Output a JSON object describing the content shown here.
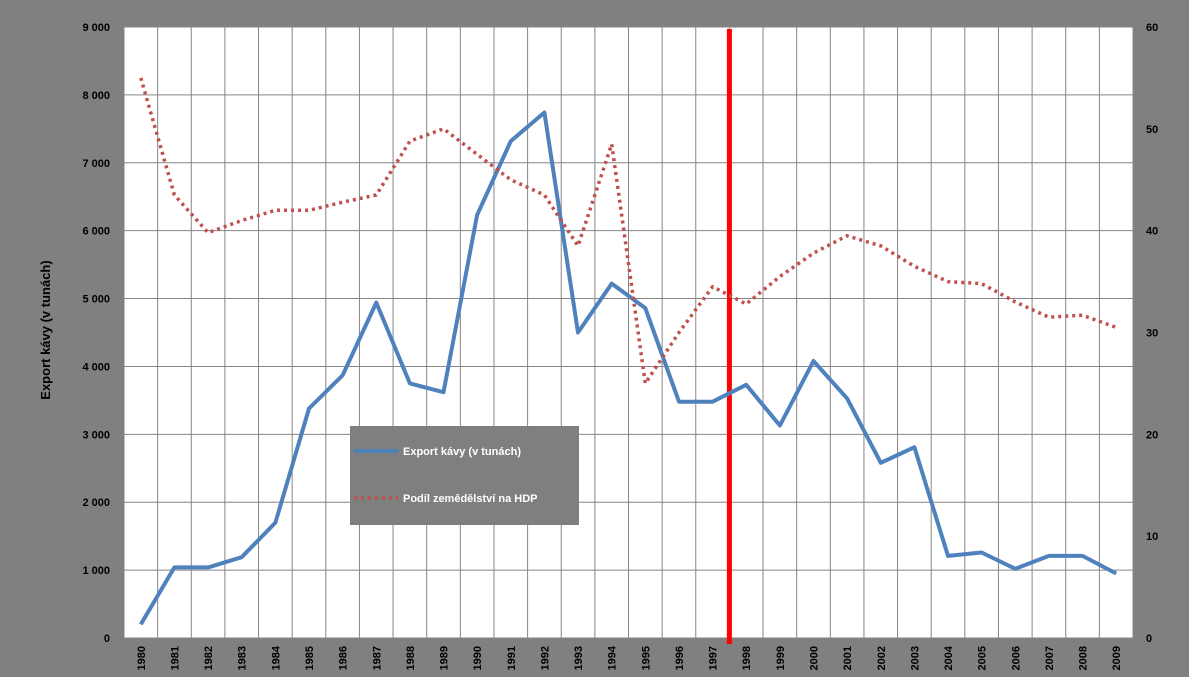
{
  "chart_data": {
    "type": "line",
    "title": "",
    "x": [
      1980,
      1981,
      1982,
      1983,
      1984,
      1985,
      1986,
      1987,
      1988,
      1989,
      1990,
      1991,
      1992,
      1993,
      1994,
      1995,
      1996,
      1997,
      1998,
      1999,
      2000,
      2001,
      2002,
      2003,
      2004,
      2005,
      2006,
      2007,
      2008,
      2009
    ],
    "x_ticks": [
      "1980",
      "1981",
      "1982",
      "1983",
      "1984",
      "1985",
      "1986",
      "1987",
      "1988",
      "1989",
      "1990",
      "1991",
      "1992",
      "1993",
      "1994",
      "1995",
      "1996",
      "1997",
      "1998",
      "1999",
      "2000",
      "2001",
      "2002",
      "2003",
      "2004",
      "2005",
      "2006",
      "2007",
      "2008",
      "2009"
    ],
    "xlabel": "",
    "ylabel": "Export kávy (v tunách)",
    "ylim": [
      0,
      9000
    ],
    "y_ticks": [
      "0",
      "1 000",
      "2 000",
      "3 000",
      "4 000",
      "5 000",
      "6 000",
      "7 000",
      "8 000",
      "9 000"
    ],
    "y2lim": [
      0,
      60
    ],
    "y2_ticks": [
      "0",
      "10",
      "20",
      "30",
      "40",
      "50",
      "60"
    ],
    "grid": true,
    "legend_position": "center-left",
    "series": [
      {
        "name": "Export kávy  (v tunách)",
        "axis": "left",
        "style": "solid",
        "color": "#4F81BD",
        "values": [
          200,
          1040,
          1040,
          1190,
          1700,
          3380,
          3870,
          4940,
          3750,
          3620,
          6230,
          7320,
          7740,
          4500,
          5220,
          4860,
          3480,
          3480,
          3730,
          3130,
          4080,
          3530,
          2580,
          2810,
          1210,
          1260,
          1020,
          1210,
          1210,
          950
        ]
      },
      {
        "name": "Podíl zemědělství na HDP",
        "axis": "right",
        "style": "dotted",
        "color": "#C0504D",
        "values": [
          55,
          43.5,
          39.8,
          41,
          42,
          42,
          42.8,
          43.5,
          48.8,
          50,
          47.5,
          45,
          43.5,
          38.5,
          48.5,
          25,
          30,
          34.5,
          32.8,
          35.5,
          37.8,
          39.5,
          38.5,
          36.5,
          35,
          34.8,
          33,
          31.5,
          31.7,
          30.5
        ]
      }
    ],
    "marker": {
      "x": 1997.5,
      "color": "#FF0000"
    }
  }
}
